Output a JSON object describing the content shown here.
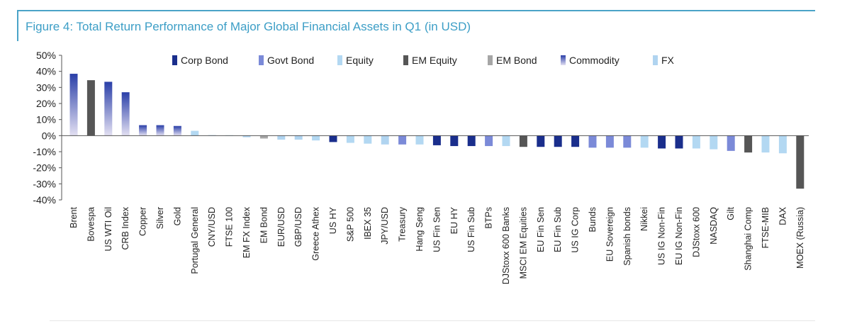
{
  "figure": {
    "title": "Figure 4: Total Return Performance of Major Global Financial Assets in Q1 (in USD)"
  },
  "chart_data": {
    "type": "bar",
    "title": "Figure 4: Total Return Performance of Major Global Financial Assets in Q1 (in USD)",
    "xlabel": "",
    "ylabel": "",
    "ylim": [
      -40,
      50
    ],
    "yticks": [
      50,
      40,
      30,
      20,
      10,
      0,
      -10,
      -20,
      -30,
      -40
    ],
    "ytick_labels": [
      "50%",
      "40%",
      "30%",
      "20%",
      "10%",
      "0%",
      "-10%",
      "-20%",
      "-30%",
      "-40%"
    ],
    "grid": false,
    "legend_position": "top",
    "legend": [
      {
        "name": "Corp Bond",
        "color": "#1a2e8c"
      },
      {
        "name": "Govt Bond",
        "color": "#7b8ad8"
      },
      {
        "name": "Equity",
        "color": "#b3d8f2"
      },
      {
        "name": "EM Equity",
        "color": "#565656"
      },
      {
        "name": "EM Bond",
        "color": "#a6a6a6"
      },
      {
        "name": "Commodity",
        "color": "#2a3fa8",
        "gradient_to": "#e3e0f2"
      },
      {
        "name": "FX",
        "color": "#b0d4f0"
      }
    ],
    "categories": [
      "Brent",
      "Bovespa",
      "US WTI Oil",
      "CRB Index",
      "Copper",
      "Silver",
      "Gold",
      "Portugal General",
      "CNY/USD",
      "FTSE 100",
      "EM FX Index",
      "EM Bond",
      "EUR/USD",
      "GBP/USD",
      "Greece Athex",
      "US HY",
      "S&P 500",
      "IBEX 35",
      "JPY/USD",
      "Treasury",
      "Hang Seng",
      "US Fin Sen",
      "EU HY",
      "US Fin Sub",
      "BTPs",
      "DJStoxx 600 Banks",
      "MSCI EM Equities",
      "EU Fin Sen",
      "EU Fin Sub",
      "US IG Corp",
      "Bunds",
      "EU Sovereign",
      "Spanish bonds",
      "Nikkei",
      "US IG Non-Fin",
      "EU IG Non-Fin",
      "DJStoxx 600",
      "NASDAQ",
      "Gilt",
      "Shanghai Comp",
      "FTSE-MIB",
      "DAX",
      "MOEX (Russia)"
    ],
    "values": [
      38.5,
      34.5,
      33.5,
      27.0,
      6.5,
      6.5,
      6.0,
      3.0,
      0.3,
      0.2,
      -1.0,
      -1.8,
      -2.5,
      -2.5,
      -3.0,
      -4.0,
      -4.5,
      -5.0,
      -5.5,
      -5.5,
      -5.5,
      -6.0,
      -6.5,
      -6.5,
      -6.5,
      -6.5,
      -7.0,
      -7.0,
      -7.0,
      -7.0,
      -7.5,
      -7.5,
      -7.5,
      -7.5,
      -8.0,
      -8.0,
      -8.0,
      -8.5,
      -9.5,
      -10.5,
      -10.5,
      -11.0,
      -33.0
    ],
    "asset_class": [
      "Commodity",
      "EM Equity",
      "Commodity",
      "Commodity",
      "Commodity",
      "Commodity",
      "Commodity",
      "Equity",
      "FX",
      "Equity",
      "FX",
      "EM Bond",
      "FX",
      "FX",
      "Equity",
      "Corp Bond",
      "Equity",
      "Equity",
      "FX",
      "Govt Bond",
      "Equity",
      "Corp Bond",
      "Corp Bond",
      "Corp Bond",
      "Govt Bond",
      "Equity",
      "EM Equity",
      "Corp Bond",
      "Corp Bond",
      "Corp Bond",
      "Govt Bond",
      "Govt Bond",
      "Govt Bond",
      "Equity",
      "Corp Bond",
      "Corp Bond",
      "Equity",
      "Equity",
      "Govt Bond",
      "EM Equity",
      "Equity",
      "Equity",
      "EM Equity"
    ]
  }
}
